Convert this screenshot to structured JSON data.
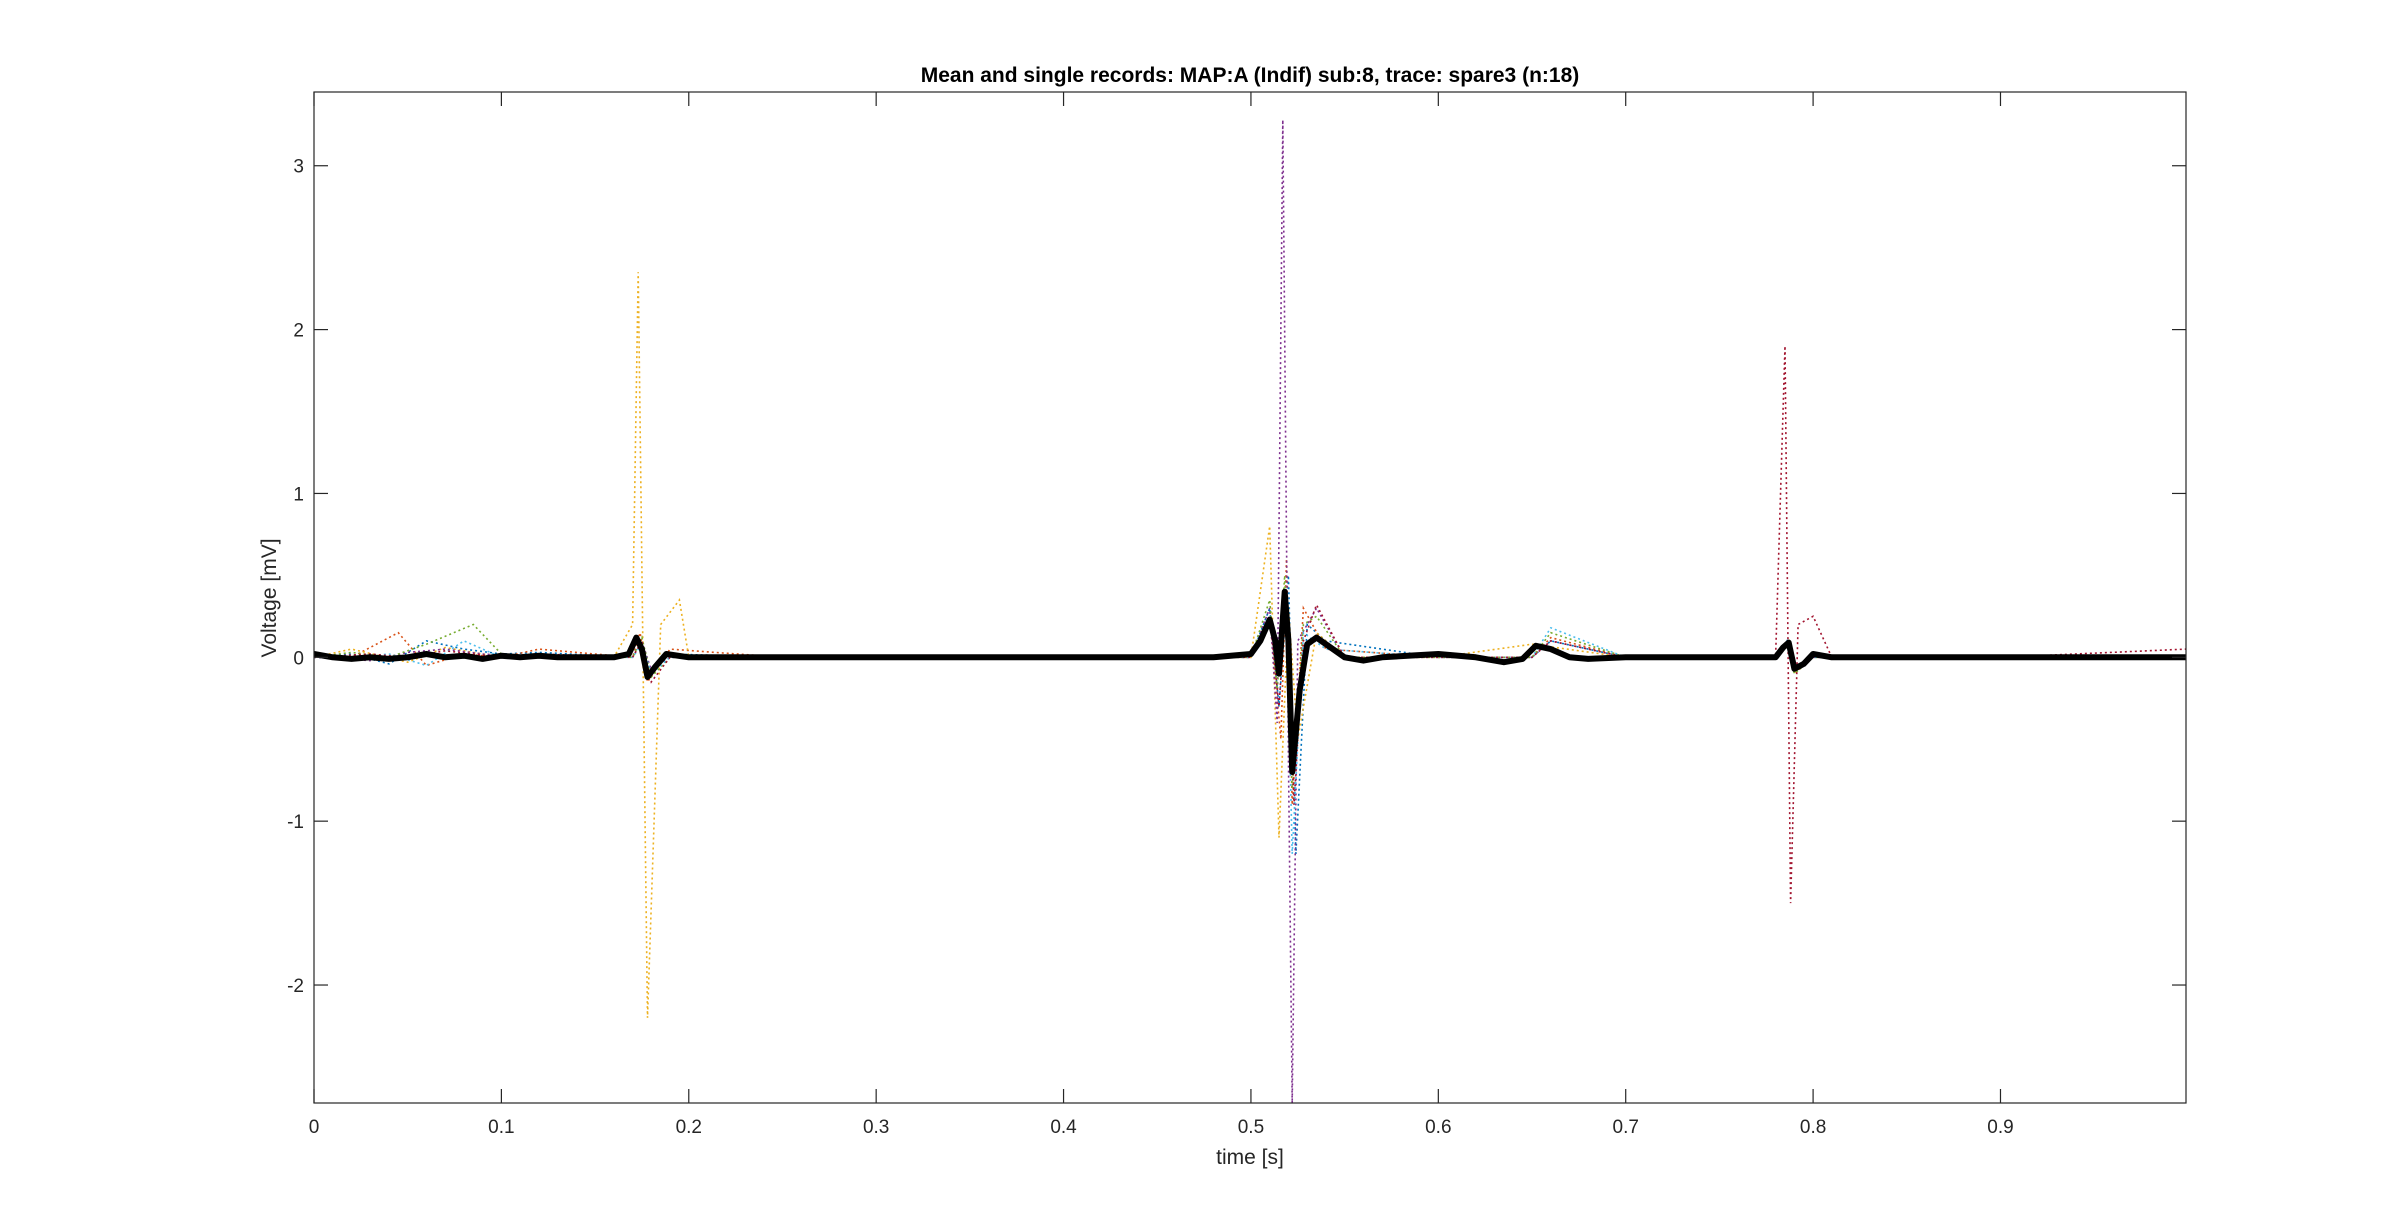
{
  "chart_data": {
    "type": "line",
    "title": "Mean and single records: MAP:A (Indif) sub:8, trace: spare3 (n:18)",
    "xlabel": "time [s]",
    "ylabel": "Voltage [mV]",
    "xlim": [
      0,
      0.999
    ],
    "ylim": [
      -2.72,
      3.45
    ],
    "xticks": [
      0,
      0.1,
      0.2,
      0.3,
      0.4,
      0.5,
      0.6,
      0.7,
      0.8,
      0.9
    ],
    "xtick_labels": [
      "0",
      "0.1",
      "0.2",
      "0.3",
      "0.4",
      "0.5",
      "0.6",
      "0.7",
      "0.8",
      "0.9"
    ],
    "yticks": [
      -2,
      -1,
      0,
      1,
      2,
      3
    ],
    "ytick_labels": [
      "-2",
      "-1",
      "0",
      "1",
      "2",
      "3"
    ],
    "grid": false,
    "mean_color": "#000000",
    "single_record_colors": [
      "#0072bd",
      "#d95319",
      "#edb120",
      "#7e2f8e",
      "#77ac30",
      "#4dbeee",
      "#a2142f"
    ],
    "mean_trace": {
      "x": [
        0,
        0.01,
        0.02,
        0.03,
        0.04,
        0.05,
        0.06,
        0.07,
        0.08,
        0.09,
        0.1,
        0.11,
        0.12,
        0.13,
        0.14,
        0.15,
        0.16,
        0.168,
        0.172,
        0.175,
        0.178,
        0.182,
        0.188,
        0.2,
        0.21,
        0.3,
        0.4,
        0.48,
        0.5,
        0.505,
        0.51,
        0.513,
        0.515,
        0.518,
        0.52,
        0.522,
        0.526,
        0.53,
        0.535,
        0.54,
        0.55,
        0.56,
        0.57,
        0.6,
        0.62,
        0.635,
        0.645,
        0.652,
        0.66,
        0.67,
        0.68,
        0.7,
        0.75,
        0.78,
        0.784,
        0.787,
        0.79,
        0.795,
        0.8,
        0.81,
        0.85,
        0.9,
        0.95,
        0.999
      ],
      "y": [
        0.02,
        0.0,
        -0.01,
        0.0,
        -0.01,
        0.0,
        0.02,
        0.0,
        0.01,
        -0.01,
        0.01,
        0.0,
        0.01,
        0.0,
        0.0,
        0.0,
        0.0,
        0.02,
        0.12,
        0.05,
        -0.12,
        -0.06,
        0.02,
        0.0,
        0.0,
        0.0,
        0.0,
        0.0,
        0.02,
        0.1,
        0.23,
        0.1,
        -0.1,
        0.4,
        0.1,
        -0.7,
        -0.2,
        0.08,
        0.12,
        0.08,
        0.0,
        -0.02,
        0.0,
        0.02,
        0.0,
        -0.03,
        -0.01,
        0.07,
        0.05,
        0.0,
        -0.01,
        0.0,
        0.0,
        0.0,
        0.06,
        0.09,
        -0.07,
        -0.04,
        0.02,
        0.0,
        0.0,
        0.0,
        0.0,
        0.0
      ]
    },
    "single_records": [
      {
        "x": [
          0,
          0.02,
          0.04,
          0.06,
          0.08,
          0.1,
          0.12,
          0.17,
          0.174,
          0.178,
          0.19,
          0.25,
          0.5,
          0.51,
          0.515,
          0.52,
          0.524,
          0.53,
          0.54,
          0.6,
          0.65,
          0.66,
          0.7,
          0.78,
          0.786,
          0.79,
          0.8,
          0.9,
          0.999
        ],
        "y": [
          0.0,
          0.02,
          -0.04,
          0.1,
          0.05,
          0.02,
          0.03,
          0.0,
          0.1,
          -0.1,
          0.02,
          0.0,
          0.0,
          0.3,
          -0.3,
          0.5,
          -1.2,
          0.2,
          0.1,
          0.0,
          0.0,
          0.1,
          0.0,
          0.0,
          0.1,
          -0.1,
          0.0,
          0.0,
          0.0
        ]
      },
      {
        "x": [
          0,
          0.02,
          0.045,
          0.06,
          0.08,
          0.1,
          0.12,
          0.17,
          0.174,
          0.178,
          0.19,
          0.25,
          0.5,
          0.51,
          0.516,
          0.519,
          0.522,
          0.528,
          0.54,
          0.6,
          0.65,
          0.66,
          0.7,
          0.78,
          0.786,
          0.79,
          0.8,
          0.9,
          0.999
        ],
        "y": [
          0.0,
          0.0,
          0.15,
          -0.05,
          0.02,
          0.0,
          0.05,
          0.0,
          0.15,
          -0.15,
          0.05,
          0.0,
          0.0,
          0.25,
          -0.5,
          0.6,
          -0.9,
          0.3,
          0.05,
          0.0,
          0.0,
          0.12,
          0.0,
          0.0,
          0.08,
          -0.08,
          0.0,
          0.0,
          0.0
        ]
      },
      {
        "x": [
          0,
          0.02,
          0.05,
          0.07,
          0.09,
          0.1,
          0.16,
          0.17,
          0.173,
          0.178,
          0.185,
          0.195,
          0.2,
          0.25,
          0.5,
          0.51,
          0.515,
          0.52,
          0.525,
          0.535,
          0.55,
          0.6,
          0.65,
          0.7,
          0.78,
          0.787,
          0.79,
          0.8,
          0.9,
          0.999
        ],
        "y": [
          0.0,
          0.05,
          -0.03,
          0.06,
          0.02,
          0.0,
          0.0,
          0.2,
          2.35,
          -2.2,
          0.2,
          0.35,
          0.0,
          0.0,
          0.0,
          0.8,
          -1.1,
          0.3,
          -0.5,
          0.15,
          0.0,
          0.0,
          0.08,
          0.0,
          0.0,
          0.1,
          -0.1,
          0.0,
          0.0,
          0.0
        ]
      },
      {
        "x": [
          0,
          0.03,
          0.05,
          0.07,
          0.09,
          0.12,
          0.17,
          0.175,
          0.18,
          0.19,
          0.3,
          0.5,
          0.51,
          0.514,
          0.517,
          0.52,
          0.522,
          0.525,
          0.535,
          0.55,
          0.6,
          0.65,
          0.66,
          0.7,
          0.78,
          0.786,
          0.79,
          0.8,
          0.9,
          0.999
        ],
        "y": [
          0.0,
          -0.02,
          0.03,
          0.05,
          0.02,
          0.0,
          0.0,
          0.1,
          -0.08,
          0.0,
          0.0,
          0.0,
          0.3,
          -0.4,
          3.28,
          -0.6,
          -2.8,
          0.1,
          0.3,
          0.0,
          0.0,
          0.0,
          0.1,
          0.0,
          0.0,
          0.08,
          -0.06,
          0.0,
          0.0,
          0.0
        ]
      },
      {
        "x": [
          0,
          0.02,
          0.04,
          0.06,
          0.085,
          0.1,
          0.12,
          0.17,
          0.175,
          0.18,
          0.19,
          0.3,
          0.5,
          0.51,
          0.514,
          0.518,
          0.522,
          0.528,
          0.535,
          0.55,
          0.6,
          0.65,
          0.66,
          0.7,
          0.78,
          0.786,
          0.79,
          0.8,
          0.9,
          0.999
        ],
        "y": [
          0.0,
          0.03,
          0.0,
          0.08,
          0.2,
          0.02,
          0.0,
          0.0,
          0.12,
          -0.12,
          0.0,
          0.0,
          0.0,
          0.35,
          -0.2,
          0.5,
          -0.8,
          0.2,
          0.25,
          0.0,
          0.0,
          0.0,
          0.15,
          0.0,
          0.0,
          0.1,
          -0.1,
          0.0,
          0.0,
          0.0
        ]
      },
      {
        "x": [
          0,
          0.02,
          0.04,
          0.06,
          0.08,
          0.1,
          0.13,
          0.17,
          0.175,
          0.18,
          0.19,
          0.3,
          0.5,
          0.51,
          0.515,
          0.519,
          0.522,
          0.528,
          0.54,
          0.6,
          0.65,
          0.66,
          0.7,
          0.78,
          0.786,
          0.79,
          0.8,
          0.9,
          0.999
        ],
        "y": [
          0.0,
          0.0,
          0.02,
          -0.05,
          0.1,
          0.0,
          0.0,
          0.0,
          0.08,
          -0.1,
          0.0,
          0.0,
          0.0,
          0.2,
          -0.1,
          0.35,
          -1.2,
          0.15,
          0.05,
          0.0,
          0.0,
          0.18,
          0.0,
          0.0,
          0.07,
          -0.07,
          0.0,
          0.0,
          0.0
        ]
      },
      {
        "x": [
          0,
          0.03,
          0.05,
          0.07,
          0.1,
          0.12,
          0.17,
          0.175,
          0.18,
          0.19,
          0.3,
          0.5,
          0.51,
          0.515,
          0.519,
          0.523,
          0.528,
          0.535,
          0.55,
          0.6,
          0.65,
          0.66,
          0.7,
          0.78,
          0.785,
          0.788,
          0.792,
          0.8,
          0.81,
          0.9,
          0.999
        ],
        "y": [
          0.0,
          0.02,
          0.0,
          0.04,
          0.0,
          0.02,
          0.0,
          0.1,
          -0.15,
          0.0,
          0.0,
          0.0,
          0.25,
          -0.3,
          0.4,
          -0.9,
          0.1,
          0.32,
          0.0,
          0.0,
          0.0,
          0.1,
          0.0,
          0.0,
          1.9,
          -1.5,
          0.2,
          0.25,
          0.0,
          0.0,
          0.05
        ]
      }
    ]
  }
}
